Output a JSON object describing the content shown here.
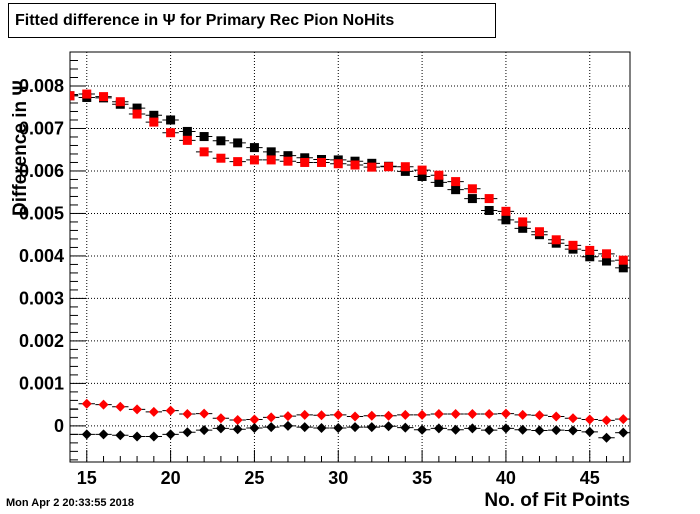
{
  "timestamp": "Mon Apr  2 20:33:55 2018",
  "chart_data": {
    "type": "scatter",
    "title": "Fitted difference in  Ψ  for Primary Rec Pion NoHits",
    "xlabel": "No. of Fit Points",
    "ylabel": "Difference in Ψ",
    "xlim": [
      14,
      47.4
    ],
    "ylim": [
      -0.00085,
      0.0088
    ],
    "x_ticks": [
      15,
      20,
      25,
      30,
      35,
      40,
      45
    ],
    "y_ticks": [
      0,
      0.001,
      0.002,
      0.003,
      0.004,
      0.005,
      0.006,
      0.007,
      0.008
    ],
    "y_tick_labels": [
      "0",
      "0.001",
      "0.002",
      "0.003",
      "0.004",
      "0.005",
      "0.006",
      "0.007",
      "0.008"
    ],
    "grid": true,
    "x": [
      14,
      15,
      16,
      17,
      18,
      19,
      20,
      21,
      22,
      23,
      24,
      25,
      26,
      27,
      28,
      29,
      30,
      31,
      32,
      33,
      34,
      35,
      36,
      37,
      38,
      39,
      40,
      41,
      42,
      43,
      44,
      45,
      46,
      47
    ],
    "series": [
      {
        "marker": "square",
        "color": "#000000",
        "values": [
          0.00777,
          0.00773,
          0.00772,
          0.00757,
          0.00748,
          0.00731,
          0.0072,
          0.00693,
          0.00681,
          0.00671,
          0.00666,
          0.00655,
          0.00645,
          0.00636,
          0.00631,
          0.00627,
          0.00626,
          0.00623,
          0.00618,
          0.00611,
          0.00599,
          0.00587,
          0.00573,
          0.00556,
          0.00535,
          0.00507,
          0.00485,
          0.00465,
          0.0045,
          0.0043,
          0.00416,
          0.00398,
          0.00388,
          0.00372
        ]
      },
      {
        "marker": "square",
        "color": "#ff0000",
        "values": [
          0.00777,
          0.00781,
          0.00775,
          0.00763,
          0.00734,
          0.00715,
          0.0069,
          0.00672,
          0.00645,
          0.0063,
          0.00622,
          0.00626,
          0.00626,
          0.00623,
          0.0062,
          0.0062,
          0.00617,
          0.00614,
          0.00609,
          0.0061,
          0.0061,
          0.00602,
          0.0059,
          0.00575,
          0.00558,
          0.00535,
          0.00505,
          0.0048,
          0.00457,
          0.00438,
          0.00425,
          0.00413,
          0.00405,
          0.0039
        ]
      },
      {
        "marker": "diamond",
        "color": "#ff0000",
        "values": [
          0.00039,
          0.00052,
          0.0005,
          0.00045,
          0.00039,
          0.00033,
          0.00036,
          0.00028,
          0.00029,
          0.00018,
          0.00014,
          0.00015,
          0.0002,
          0.00023,
          0.00026,
          0.00025,
          0.00026,
          0.00022,
          0.00024,
          0.00024,
          0.00026,
          0.00026,
          0.00028,
          0.00028,
          0.00028,
          0.00028,
          0.00029,
          0.00026,
          0.00025,
          0.00022,
          0.00018,
          0.00015,
          0.00013,
          0.00016
        ]
      },
      {
        "marker": "diamond",
        "color": "#000000",
        "values": [
          -0.0002,
          -0.0002,
          -0.0002,
          -0.00022,
          -0.00025,
          -0.00025,
          -0.0002,
          -0.00015,
          -0.0001,
          -6e-05,
          -8e-05,
          -5e-05,
          -3e-05,
          0.0,
          -3e-05,
          -5e-05,
          -5e-05,
          -3e-05,
          -3e-05,
          -1e-05,
          -4e-05,
          -9e-05,
          -6e-05,
          -9e-05,
          -6e-05,
          -0.0001,
          -6e-05,
          -9e-05,
          -0.00011,
          -0.0001,
          -0.00011,
          -0.00014,
          -0.00028,
          -0.00016
        ]
      }
    ]
  }
}
